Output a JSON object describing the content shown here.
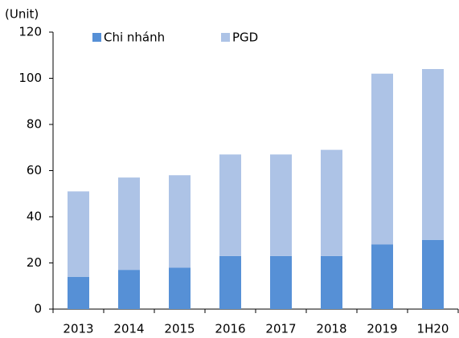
{
  "chart_data": {
    "type": "stacked_bar",
    "y_axis_label": "(Unit)",
    "categories": [
      "2013",
      "2014",
      "2015",
      "2016",
      "2017",
      "2018",
      "2019",
      "1H20"
    ],
    "series": [
      {
        "name": "Chi nhánh",
        "color": "#5690d6",
        "values": [
          14,
          17,
          18,
          23,
          23,
          23,
          28,
          30
        ]
      },
      {
        "name": "PGD",
        "color": "#adc3e6",
        "values": [
          37,
          40,
          40,
          44,
          44,
          46,
          74,
          74
        ]
      }
    ],
    "ylim": [
      0,
      120
    ],
    "yticks": [
      0,
      20,
      40,
      60,
      80,
      100,
      120
    ],
    "grid": false,
    "legend": "top"
  }
}
